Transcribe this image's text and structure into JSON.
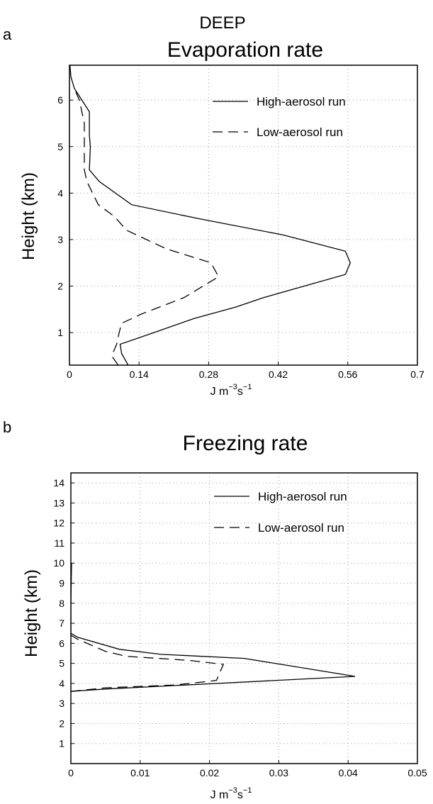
{
  "page_title": "DEEP",
  "chart_data": [
    {
      "type": "line",
      "panel_letter": "a",
      "title": "Evaporation rate",
      "xlabel_main": "J m",
      "xlabel_sup1": "−3",
      "xlabel_mid": "s",
      "xlabel_sup2": "−1",
      "ylabel": "Height (km)",
      "xlim": [
        0,
        0.7
      ],
      "ylim": [
        0.3,
        6.75
      ],
      "xticks": [
        0,
        0.14,
        0.28,
        0.42,
        0.56,
        0.7
      ],
      "xtick_labels": [
        "0",
        "0.14",
        "0.28",
        "0.42",
        "0.56",
        "0.7"
      ],
      "yticks": [
        1,
        2,
        3,
        4,
        5,
        6
      ],
      "ytick_labels": [
        "1",
        "2",
        "3",
        "4",
        "5",
        "6"
      ],
      "grid": true,
      "legend_position": "top-right",
      "series": [
        {
          "name": "High-aerosol run",
          "style": "solid",
          "color": "#000000",
          "points": [
            [
              0.118,
              0.3
            ],
            [
              0.105,
              0.55
            ],
            [
              0.102,
              0.75
            ],
            [
              0.17,
              1.0
            ],
            [
              0.25,
              1.3
            ],
            [
              0.335,
              1.55
            ],
            [
              0.39,
              1.75
            ],
            [
              0.555,
              2.25
            ],
            [
              0.565,
              2.5
            ],
            [
              0.555,
              2.75
            ],
            [
              0.43,
              3.1
            ],
            [
              0.26,
              3.45
            ],
            [
              0.125,
              3.75
            ],
            [
              0.06,
              4.25
            ],
            [
              0.04,
              4.5
            ],
            [
              0.042,
              5.0
            ],
            [
              0.04,
              5.25
            ],
            [
              0.04,
              5.75
            ],
            [
              0.01,
              6.25
            ],
            [
              0.003,
              6.5
            ],
            [
              0.001,
              6.75
            ]
          ]
        },
        {
          "name": "Low-aerosol run",
          "style": "dashed",
          "color": "#000000",
          "points": [
            [
              0.098,
              0.3
            ],
            [
              0.085,
              0.5
            ],
            [
              0.095,
              0.75
            ],
            [
              0.1,
              1.0
            ],
            [
              0.105,
              1.2
            ],
            [
              0.145,
              1.4
            ],
            [
              0.23,
              1.75
            ],
            [
              0.3,
              2.2
            ],
            [
              0.285,
              2.5
            ],
            [
              0.195,
              2.8
            ],
            [
              0.115,
              3.2
            ],
            [
              0.09,
              3.5
            ],
            [
              0.058,
              3.75
            ],
            [
              0.035,
              4.25
            ],
            [
              0.03,
              4.5
            ],
            [
              0.03,
              5.0
            ],
            [
              0.03,
              5.5
            ],
            [
              0.02,
              6.0
            ],
            [
              0.01,
              6.25
            ]
          ]
        }
      ]
    },
    {
      "type": "line",
      "panel_letter": "b",
      "title": "Freezing rate",
      "xlabel_main": "J m",
      "xlabel_sup1": "−3",
      "xlabel_mid": "s",
      "xlabel_sup2": "−1",
      "ylabel": "Height (km)",
      "xlim": [
        0,
        0.05
      ],
      "ylim": [
        0,
        14.5
      ],
      "xticks": [
        0,
        0.01,
        0.02,
        0.03,
        0.04,
        0.05
      ],
      "xtick_labels": [
        "0",
        "0.01",
        "0.02",
        "0.03",
        "0.04",
        "0.05"
      ],
      "yticks": [
        1,
        2,
        3,
        4,
        5,
        6,
        7,
        8,
        9,
        10,
        11,
        12,
        13,
        14
      ],
      "ytick_labels": [
        "1",
        "2",
        "3",
        "4",
        "5",
        "6",
        "7",
        "8",
        "9",
        "10",
        "11",
        "12",
        "13",
        "14"
      ],
      "grid": true,
      "legend_position": "top-right",
      "series": [
        {
          "name": "High-aerosol run",
          "style": "solid",
          "color": "#000000",
          "points": [
            [
              0.0,
              3.6
            ],
            [
              0.005,
              3.72
            ],
            [
              0.02,
              3.98
            ],
            [
              0.041,
              4.35
            ],
            [
              0.025,
              5.25
            ],
            [
              0.013,
              5.45
            ],
            [
              0.007,
              5.7
            ],
            [
              0.001,
              6.3
            ],
            [
              0.0,
              6.5
            ],
            [
              0.0,
              8.0
            ],
            [
              0.0001,
              10.0
            ]
          ]
        },
        {
          "name": "Low-aerosol run",
          "style": "dashed",
          "color": "#000000",
          "points": [
            [
              0.0,
              3.6
            ],
            [
              0.005,
              3.78
            ],
            [
              0.015,
              3.92
            ],
            [
              0.021,
              4.15
            ],
            [
              0.022,
              4.95
            ],
            [
              0.017,
              5.15
            ],
            [
              0.008,
              5.35
            ],
            [
              0.005,
              5.6
            ],
            [
              0.001,
              6.2
            ],
            [
              0.0,
              6.4
            ]
          ]
        }
      ]
    }
  ]
}
